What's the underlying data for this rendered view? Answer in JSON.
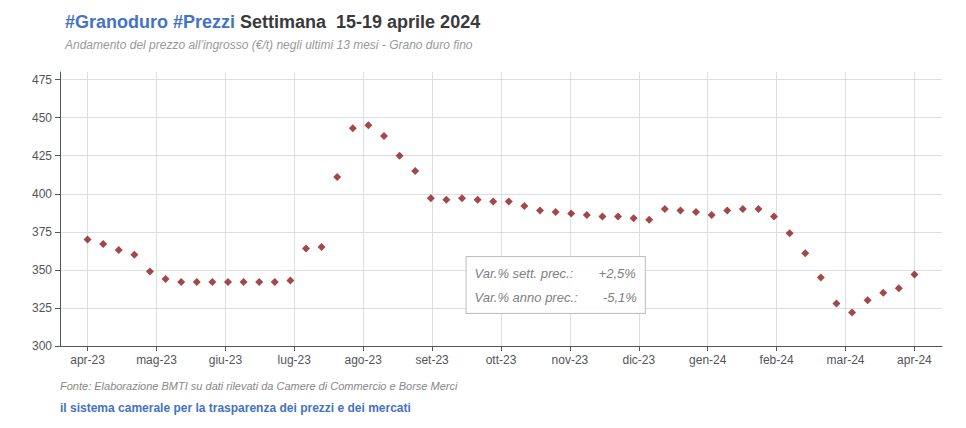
{
  "chart_data": {
    "type": "scatter",
    "title": [
      {
        "text": "#Granoduro #Prezzi",
        "color": "#4472c4"
      },
      {
        "text": " Settimana  15-19 aprile 2024",
        "color": "#3a3a3a"
      }
    ],
    "subtitle": "Andamento del prezzo all’ingrosso (€/t) negli ultimi 13 mesi - Grano duro fino",
    "x": [
      0,
      0.2264150943,
      0.4528301887,
      0.679245283,
      0.9056603774,
      1.1320754717,
      1.358490566,
      1.5849056604,
      1.8113207547,
      2.0377358491,
      2.2641509434,
      2.4905660377,
      2.7169811321,
      2.9433962264,
      3.1698113208,
      3.3962264151,
      3.6226415094,
      3.8490566038,
      4.0754716981,
      4.3018867925,
      4.5283018868,
      4.7547169811,
      4.9811320755,
      5.2075471698,
      5.4339622642,
      5.6603773585,
      5.8867924528,
      6.1132075472,
      6.3396226415,
      6.5660377358,
      6.7924528302,
      7.0188679245,
      7.2452830189,
      7.4716981132,
      7.6981132075,
      7.9245283019,
      8.1509433962,
      8.3773584906,
      8.6037735849,
      8.8301886792,
      9.0566037736,
      9.2830188679,
      9.5094339623,
      9.7358490566,
      9.9622641509,
      10.1886792453,
      10.4150943396,
      10.641509434,
      10.8679245283,
      11.0943396226,
      11.320754717,
      11.5471698113,
      11.7735849057,
      12
    ],
    "values": [
      370,
      367,
      363,
      360,
      349,
      344,
      342,
      342,
      342,
      342,
      342,
      342,
      342,
      343,
      364,
      365,
      411,
      443,
      445,
      438,
      425,
      415,
      397,
      396,
      397,
      396,
      395,
      395,
      392,
      389,
      388,
      387,
      386,
      385,
      385,
      384,
      383,
      390,
      389,
      388,
      386,
      389,
      390,
      390,
      385,
      374,
      361,
      345,
      328,
      322,
      330,
      335,
      338,
      347
    ],
    "color": "#8b1a1a",
    "marker": "diamond",
    "xlim": [
      -0.4,
      12.4
    ],
    "xticks": [
      {
        "value": 0,
        "label": "apr-23"
      },
      {
        "value": 1,
        "label": "mag-23"
      },
      {
        "value": 2,
        "label": "giu-23"
      },
      {
        "value": 3,
        "label": "lug-23"
      },
      {
        "value": 4,
        "label": "ago-23"
      },
      {
        "value": 5,
        "label": "set-23"
      },
      {
        "value": 6,
        "label": "ott-23"
      },
      {
        "value": 7,
        "label": "nov-23"
      },
      {
        "value": 8,
        "label": "dic-23"
      },
      {
        "value": 9,
        "label": "gen-24"
      },
      {
        "value": 10,
        "label": "feb-24"
      },
      {
        "value": 11,
        "label": "mar-24"
      },
      {
        "value": 12,
        "label": "apr-24"
      }
    ],
    "ylim": [
      300,
      480
    ],
    "yticks": [
      300,
      325,
      350,
      375,
      400,
      425,
      450,
      475
    ],
    "grid": true,
    "annotations": [
      "Var.% sett. prec.:       +2,5%",
      "Var.% anno prec.:       -5,1%"
    ],
    "footer": [
      {
        "text": "Fonte: Elaborazione BMTI su dati rilevati da Camere di Commercio e Borse Merci",
        "color": "#888888"
      },
      {
        "text": "il sistema camerale per la trasparenza dei prezzi e dei mercati",
        "color": "#4472c4"
      }
    ]
  }
}
